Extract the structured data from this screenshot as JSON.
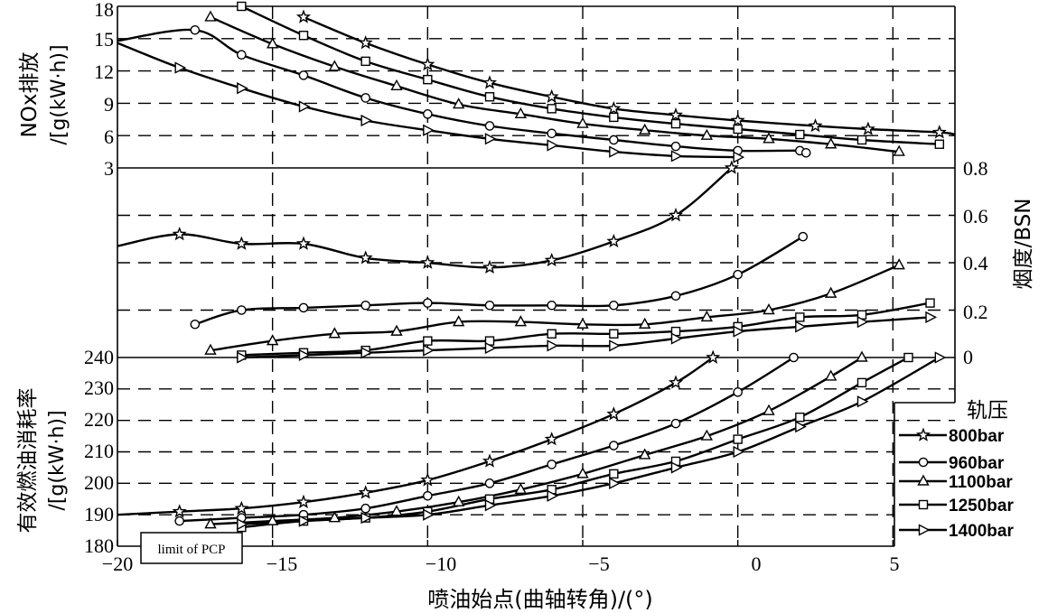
{
  "chart_data": {
    "type": "line",
    "xlabel": "喷油始点(曲轴转角)/(°)",
    "xticks": [
      "−20",
      "−15",
      "−10",
      "−5",
      "0",
      "5"
    ],
    "xlim": [
      -20,
      7
    ],
    "legend_title": "轨压",
    "legend_position": "right",
    "grid": true,
    "series_names": [
      "800bar",
      "960bar",
      "1100bar",
      "1250bar",
      "1400bar"
    ],
    "series_markers": [
      "star",
      "circle",
      "triangle",
      "square",
      "right-triangle"
    ],
    "annotation": "limit of PCP",
    "panels": [
      {
        "name": "NOx",
        "ylabel_line1": "NOx排放",
        "ylabel_line2": "/[g(kW·h)]",
        "ylim": [
          3,
          18
        ],
        "yticks": [
          "3",
          "6",
          "9",
          "12",
          "15",
          "18"
        ],
        "series": [
          {
            "name": "800bar",
            "x": [
              -14,
              -12,
              -10,
              -8,
              -6,
              -4,
              -2,
              0,
              2.5,
              4.2,
              6.5,
              7
            ],
            "y": [
              17,
              14.6,
              12.6,
              10.9,
              9.6,
              8.5,
              7.9,
              7.4,
              6.9,
              6.6,
              6.3,
              6.1
            ]
          },
          {
            "name": "960bar",
            "x": [
              -20,
              -17.5,
              -16,
              -14,
              -12,
              -10,
              -8,
              -6,
              -4,
              -2,
              0,
              2,
              2.2
            ],
            "y": [
              14.8,
              15.8,
              13.5,
              11.6,
              9.5,
              8.0,
              6.9,
              6.2,
              5.6,
              5.0,
              4.6,
              4.6,
              4.4
            ]
          },
          {
            "name": "1100bar",
            "x": [
              -17,
              -15,
              -13,
              -11,
              -9,
              -7,
              -5,
              -3,
              -1,
              1,
              3,
              5.2
            ],
            "y": [
              17,
              14.5,
              12.4,
              10.6,
              8.9,
              8.0,
              7.1,
              6.5,
              6.0,
              5.7,
              5.2,
              4.5
            ]
          },
          {
            "name": "1250bar",
            "x": [
              -16,
              -14,
              -12,
              -10,
              -8,
              -6,
              -4,
              -2,
              0,
              2,
              4,
              6.5
            ],
            "y": [
              18,
              15.3,
              12.9,
              11.2,
              9.6,
              8.5,
              7.7,
              7.1,
              6.6,
              6.1,
              5.6,
              5.2
            ]
          },
          {
            "name": "1400bar",
            "x": [
              -20,
              -18,
              -16,
              -14,
              -12,
              -10,
              -8,
              -6,
              -4,
              -2,
              0
            ],
            "y": [
              14.6,
              12.3,
              10.4,
              8.7,
              7.4,
              6.5,
              5.7,
              5.1,
              4.5,
              4.1,
              4.0
            ]
          }
        ]
      },
      {
        "name": "smoke",
        "ylabel": "烟度/BSN",
        "ylim": [
          0,
          0.8
        ],
        "yticks": [
          "0",
          "0.2",
          "0.4",
          "0.6",
          "0.8"
        ],
        "series": [
          {
            "name": "800bar",
            "x": [
              -20,
              -18,
              -16,
              -14,
              -12,
              -10,
              -8,
              -6,
              -4,
              -2,
              -0.2
            ],
            "y": [
              0.47,
              0.52,
              0.48,
              0.48,
              0.42,
              0.4,
              0.38,
              0.41,
              0.49,
              0.6,
              0.8
            ]
          },
          {
            "name": "960bar",
            "x": [
              -17.5,
              -16,
              -14,
              -12,
              -10,
              -8,
              -6,
              -4,
              -2,
              0,
              2.1
            ],
            "y": [
              0.14,
              0.2,
              0.21,
              0.22,
              0.23,
              0.22,
              0.22,
              0.22,
              0.26,
              0.35,
              0.51
            ]
          },
          {
            "name": "1100bar",
            "x": [
              -17,
              -15,
              -13,
              -11,
              -9,
              -7,
              -5,
              -3,
              -1,
              1,
              3,
              5.2
            ],
            "y": [
              0.03,
              0.07,
              0.1,
              0.11,
              0.15,
              0.15,
              0.14,
              0.14,
              0.17,
              0.2,
              0.27,
              0.39
            ]
          },
          {
            "name": "1250bar",
            "x": [
              -16,
              -14,
              -12,
              -10,
              -8,
              -6,
              -4,
              -2,
              0,
              2,
              4,
              6.2
            ],
            "y": [
              0.01,
              0.02,
              0.03,
              0.07,
              0.07,
              0.1,
              0.1,
              0.11,
              0.13,
              0.17,
              0.18,
              0.23
            ]
          },
          {
            "name": "1400bar",
            "x": [
              -16,
              -14,
              -12,
              -10,
              -8,
              -6,
              -4,
              -2,
              0,
              2,
              4,
              6.2
            ],
            "y": [
              0.0,
              0.01,
              0.02,
              0.03,
              0.04,
              0.05,
              0.05,
              0.08,
              0.11,
              0.13,
              0.15,
              0.17
            ]
          }
        ]
      },
      {
        "name": "BSFC",
        "ylabel_line1": "有效燃油消耗率",
        "ylabel_line2": "/[g(kW·h)]",
        "ylim": [
          180,
          240
        ],
        "yticks": [
          "180",
          "190",
          "200",
          "210",
          "220",
          "230",
          "240"
        ],
        "series": [
          {
            "name": "800bar",
            "x": [
              -20,
              -18,
              -16,
              -14,
              -12,
              -10,
              -8,
              -6,
              -4,
              -2,
              -0.8
            ],
            "y": [
              190,
              191,
              192,
              194,
              197,
              201,
              207,
              214,
              222,
              232,
              240
            ]
          },
          {
            "name": "960bar",
            "x": [
              -18,
              -16,
              -14,
              -12,
              -10,
              -8,
              -6,
              -4,
              -2,
              0,
              1.8
            ],
            "y": [
              188,
              189,
              190,
              192,
              196,
              200,
              206,
              212,
              219,
              229,
              240
            ]
          },
          {
            "name": "1100bar",
            "x": [
              -17,
              -15,
              -13,
              -11,
              -9,
              -7,
              -5,
              -3,
              -1,
              1,
              3,
              4
            ],
            "y": [
              187,
              188,
              189,
              191,
              194,
              198,
              203,
              209,
              215,
              223,
              234,
              240
            ]
          },
          {
            "name": "1250bar",
            "x": [
              -16,
              -14,
              -12,
              -10,
              -8,
              -6,
              -4,
              -2,
              0,
              2,
              4,
              5.5
            ],
            "y": [
              186,
              188,
              189,
              191,
              195,
              198,
              203,
              207,
              214,
              221,
              232,
              240
            ]
          },
          {
            "name": "1400bar",
            "x": [
              -16,
              -14,
              -12,
              -10,
              -8,
              -6,
              -4,
              -2,
              0,
              2,
              4,
              6.5
            ],
            "y": [
              187,
              188,
              189,
              190,
              193,
              196,
              200,
              205,
              210,
              218,
              226,
              240
            ]
          }
        ]
      }
    ]
  }
}
